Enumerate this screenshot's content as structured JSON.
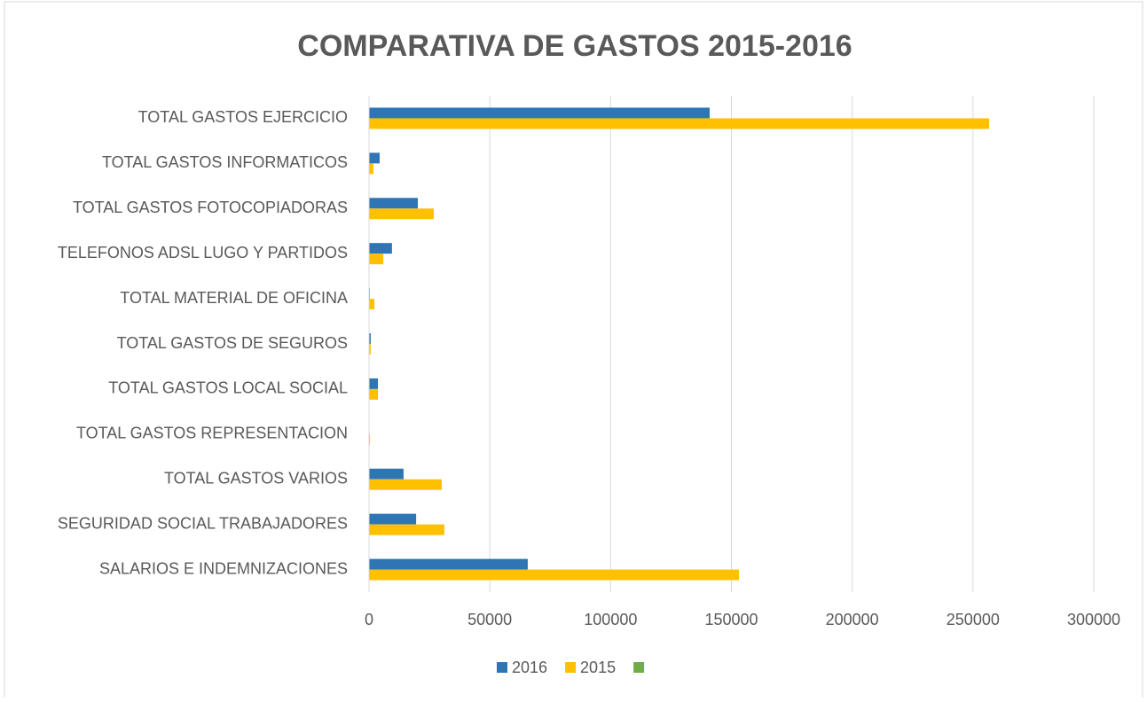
{
  "chart_data": {
    "type": "hbar",
    "title": "COMPARATIVA DE GASTOS 2015-2016",
    "categories": [
      "TOTAL GASTOS EJERCICIO",
      "TOTAL GASTOS INFORMATICOS",
      "TOTAL GASTOS FOTOCOPIADORAS",
      "TELEFONOS  ADSL LUGO Y PARTIDOS",
      "TOTAL MATERIAL DE OFICINA",
      "TOTAL  GASTOS DE SEGUROS",
      "TOTAL GASTOS LOCAL SOCIAL",
      "TOTAL GASTOS REPRESENTACION",
      "TOTAL GASTOS VARIOS",
      "SEGURIDAD SOCIAL TRABAJADORES",
      "SALARIOS E INDEMNIZACIONES"
    ],
    "series": [
      {
        "name": "2016",
        "color": "#2e75b6",
        "values": [
          141000,
          4400,
          20200,
          9500,
          300,
          700,
          3700,
          0,
          14300,
          19500,
          65700
        ]
      },
      {
        "name": "2015",
        "color": "#ffc000",
        "values": [
          256700,
          1800,
          26800,
          5900,
          2200,
          700,
          3700,
          400,
          30100,
          31200,
          153100
        ]
      },
      {
        "color": "#70ad47",
        "values": [
          null,
          null,
          null,
          null,
          null,
          null,
          null,
          null,
          null,
          null,
          null
        ]
      }
    ],
    "xlim": [
      0,
      300000
    ],
    "xticks": [
      0,
      50000,
      100000,
      150000,
      200000,
      250000,
      300000
    ],
    "grid": true,
    "legend": "bottom"
  }
}
